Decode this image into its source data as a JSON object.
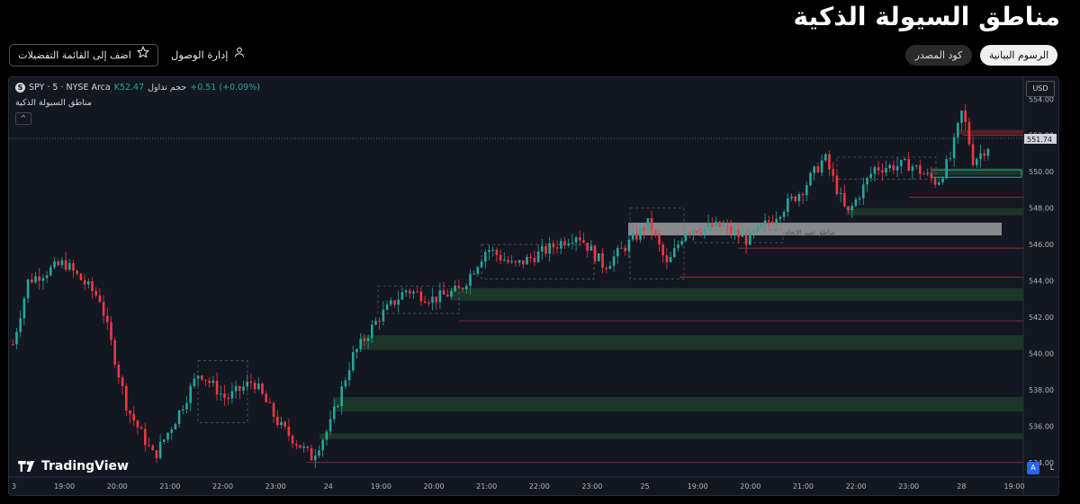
{
  "page": {
    "title": "مناطق السيولة الذكية",
    "tabs": [
      {
        "label": "الرسوم البيانية",
        "active": true
      },
      {
        "label": "كود المصدر",
        "active": false
      }
    ],
    "favorites_button": "اضف إلى القائمة التفضيلات",
    "access_label": "إدارة الوصول"
  },
  "chart": {
    "symbol": "SPY · 5 · NYSE Arca",
    "symbol_badge": "S",
    "volume_label": "حجم تداول",
    "volume_value": "K52.47",
    "change": "+0.51 (+0.09%)",
    "indicator_name": "مناطق السيولة الذكية",
    "collapse_glyph": "^",
    "currency": "USD",
    "current_price": "551.74",
    "brand": "TradingView",
    "btn_auto": "A",
    "btn_log": "L",
    "trend_label": "مناطق تغيير الاتجاه",
    "colors": {
      "up": "#26a69a",
      "down": "#f23645",
      "bg": "#131722",
      "grid": "#1e222d",
      "zone_green": "#1e3a2a"
    }
  },
  "chart_data": {
    "type": "candlestick",
    "y_ticks": [
      "554.00",
      "552.00",
      "550.00",
      "548.00",
      "546.00",
      "544.00",
      "542.00",
      "540.00",
      "538.00",
      "536.00",
      "534.00"
    ],
    "ylim": [
      533.2,
      555.2
    ],
    "x_ticks": [
      "3",
      "19:00",
      "20:00",
      "21:00",
      "22:00",
      "23:00",
      "24",
      "19:00",
      "20:00",
      "21:00",
      "22:00",
      "23:00",
      "25",
      "19:00",
      "20:00",
      "21:00",
      "22:00",
      "23:00",
      "28",
      "19:00"
    ],
    "last_price": 551.74
  }
}
